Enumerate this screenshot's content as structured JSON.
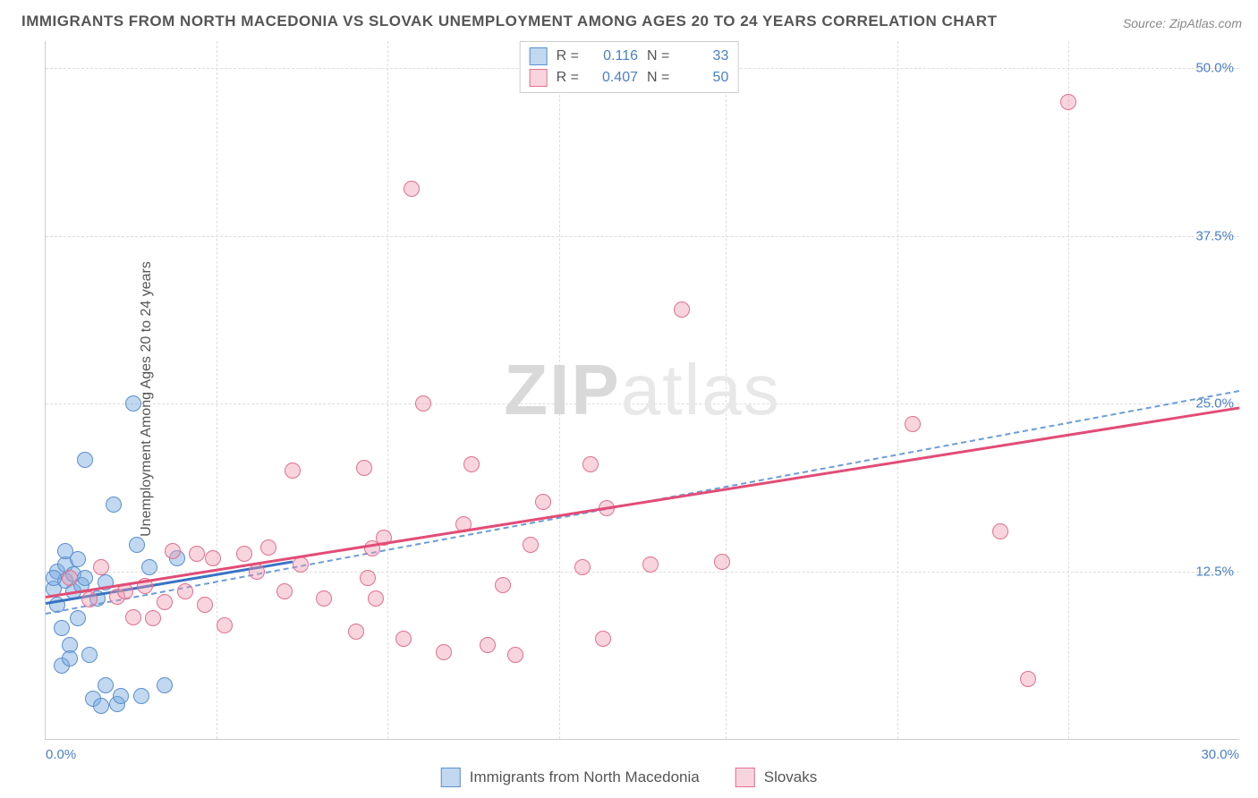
{
  "title": "IMMIGRANTS FROM NORTH MACEDONIA VS SLOVAK UNEMPLOYMENT AMONG AGES 20 TO 24 YEARS CORRELATION CHART",
  "source": "Source: ZipAtlas.com",
  "ylabel": "Unemployment Among Ages 20 to 24 years",
  "watermark_a": "ZIP",
  "watermark_b": "atlas",
  "chart": {
    "type": "scatter",
    "xlim": [
      0,
      30
    ],
    "ylim": [
      0,
      52
    ],
    "xticks": [
      {
        "v": 0,
        "label": "0.0%"
      },
      {
        "v": 30,
        "label": "30.0%"
      }
    ],
    "yticks": [
      {
        "v": 12.5,
        "label": "12.5%"
      },
      {
        "v": 25,
        "label": "25.0%"
      },
      {
        "v": 37.5,
        "label": "37.5%"
      },
      {
        "v": 50,
        "label": "50.0%"
      }
    ],
    "vgrid": [
      4.3,
      8.6,
      12.9,
      17.1,
      21.4,
      25.7
    ],
    "background_color": "#ffffff",
    "grid_color": "#dddddd",
    "marker_radius": 9,
    "marker_border": 1.4,
    "series": [
      {
        "key": "blue",
        "label": "Immigrants from North Macedonia",
        "fill": "rgba(118,168,222,0.45)",
        "stroke": "#5b8fd0",
        "r": 0.116,
        "n": 33,
        "trend_solid": {
          "x1": 0,
          "y1": 10.2,
          "x2": 6.2,
          "y2": 13.3,
          "color": "#3874c4"
        },
        "trend_dash": {
          "x1": 0,
          "y1": 9.4,
          "x2": 30,
          "y2": 26.0,
          "color": "#6b9dd8"
        },
        "points": [
          [
            0.2,
            11.2
          ],
          [
            0.3,
            10.0
          ],
          [
            0.3,
            12.5
          ],
          [
            0.4,
            8.3
          ],
          [
            0.5,
            11.8
          ],
          [
            0.5,
            13.0
          ],
          [
            0.6,
            7.0
          ],
          [
            0.5,
            14.0
          ],
          [
            0.7,
            12.3
          ],
          [
            0.7,
            11.0
          ],
          [
            0.8,
            9.0
          ],
          [
            0.8,
            13.4
          ],
          [
            0.9,
            11.5
          ],
          [
            1.0,
            20.8
          ],
          [
            1.0,
            12.0
          ],
          [
            1.1,
            6.3
          ],
          [
            1.2,
            3.0
          ],
          [
            1.3,
            10.5
          ],
          [
            1.4,
            2.5
          ],
          [
            1.5,
            4.0
          ],
          [
            1.5,
            11.7
          ],
          [
            1.7,
            17.5
          ],
          [
            1.8,
            2.6
          ],
          [
            1.9,
            3.2
          ],
          [
            2.2,
            25.0
          ],
          [
            2.3,
            14.5
          ],
          [
            2.4,
            3.2
          ],
          [
            2.6,
            12.8
          ],
          [
            3.0,
            4.0
          ],
          [
            3.3,
            13.5
          ],
          [
            0.4,
            5.5
          ],
          [
            0.6,
            6.0
          ],
          [
            0.2,
            12.0
          ]
        ]
      },
      {
        "key": "pink",
        "label": "Slovaks",
        "fill": "rgba(238,151,172,0.40)",
        "stroke": "#e36f8e",
        "r": 0.407,
        "n": 50,
        "trend_solid": {
          "x1": 0,
          "y1": 10.7,
          "x2": 30,
          "y2": 24.8,
          "color": "#e24c76"
        },
        "trend_dash": null,
        "points": [
          [
            0.6,
            12.0
          ],
          [
            1.1,
            10.4
          ],
          [
            1.4,
            12.8
          ],
          [
            1.8,
            10.6
          ],
          [
            2.0,
            11.0
          ],
          [
            2.2,
            9.1
          ],
          [
            2.5,
            11.4
          ],
          [
            2.7,
            9.0
          ],
          [
            3.0,
            10.2
          ],
          [
            3.2,
            14.0
          ],
          [
            3.5,
            11.0
          ],
          [
            3.8,
            13.8
          ],
          [
            4.0,
            10.0
          ],
          [
            4.2,
            13.5
          ],
          [
            4.5,
            8.5
          ],
          [
            5.0,
            13.8
          ],
          [
            5.3,
            12.5
          ],
          [
            5.6,
            14.3
          ],
          [
            6.0,
            11.0
          ],
          [
            6.2,
            20.0
          ],
          [
            6.4,
            13.0
          ],
          [
            7.0,
            10.5
          ],
          [
            7.8,
            8.0
          ],
          [
            8.0,
            20.2
          ],
          [
            8.1,
            12.0
          ],
          [
            8.2,
            14.2
          ],
          [
            8.3,
            10.5
          ],
          [
            9.0,
            7.5
          ],
          [
            9.2,
            41.0
          ],
          [
            9.5,
            25.0
          ],
          [
            10.0,
            6.5
          ],
          [
            10.5,
            16.0
          ],
          [
            10.7,
            20.5
          ],
          [
            11.1,
            7.0
          ],
          [
            11.5,
            11.5
          ],
          [
            11.8,
            6.3
          ],
          [
            12.2,
            14.5
          ],
          [
            12.5,
            17.7
          ],
          [
            13.5,
            12.8
          ],
          [
            13.7,
            20.5
          ],
          [
            14.0,
            7.5
          ],
          [
            14.1,
            17.2
          ],
          [
            15.2,
            13.0
          ],
          [
            16.0,
            32.0
          ],
          [
            17.0,
            13.2
          ],
          [
            21.8,
            23.5
          ],
          [
            24.0,
            15.5
          ],
          [
            24.7,
            4.5
          ],
          [
            25.7,
            47.5
          ],
          [
            8.5,
            15.0
          ]
        ]
      }
    ]
  },
  "legend_top": {
    "r_label": "R  =",
    "n_label": "N  ="
  }
}
